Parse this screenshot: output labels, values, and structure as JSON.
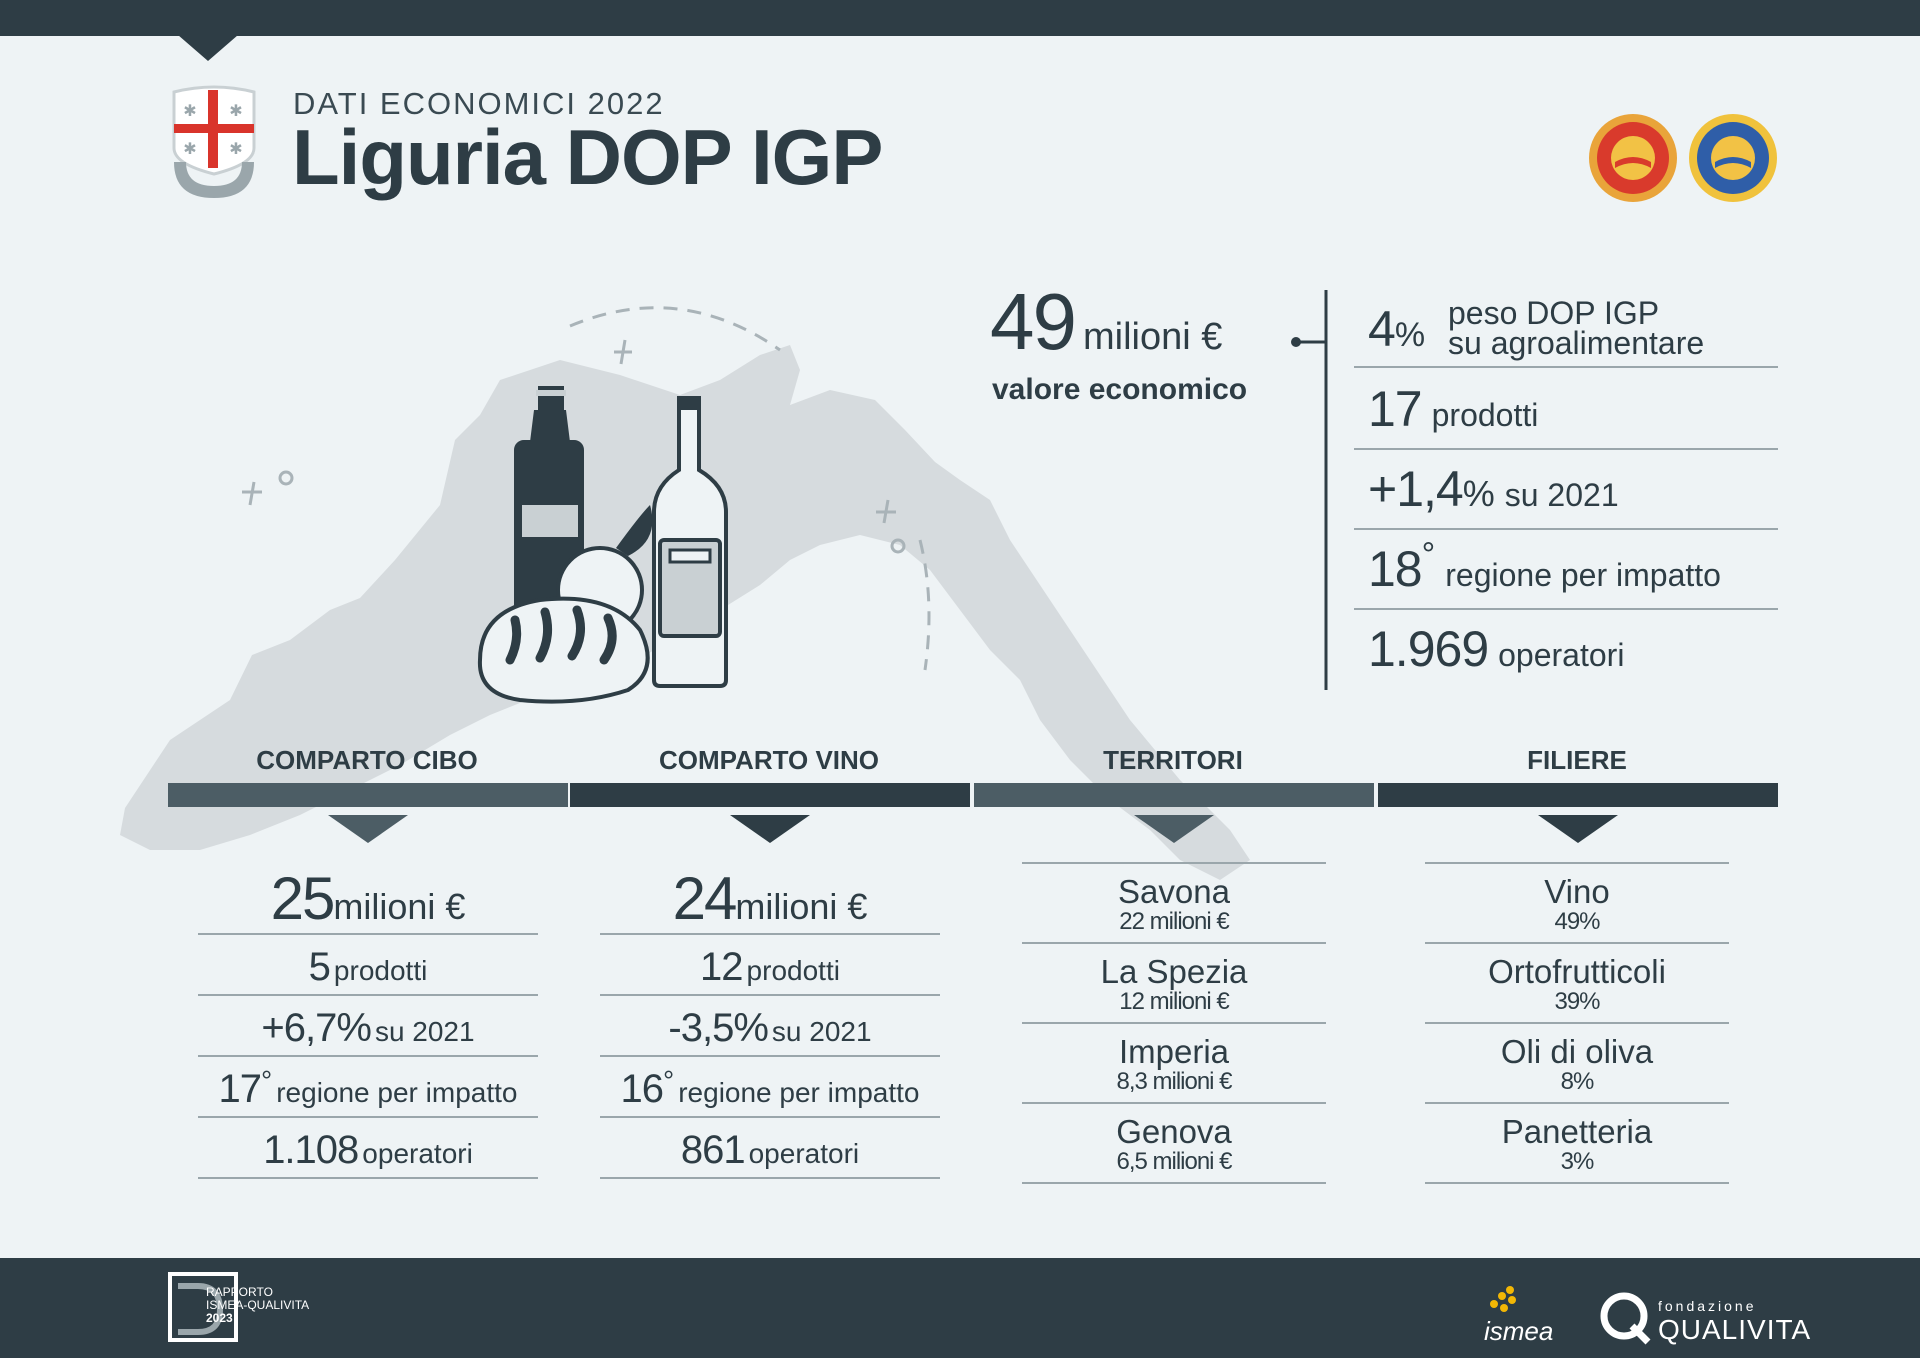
{
  "header": {
    "kicker": "DATI ECONOMICI 2022",
    "title": "Liguria DOP IGP"
  },
  "summary": {
    "value": "49",
    "unit": "milioni €",
    "label": "valore economico",
    "kpis": [
      {
        "num": "4",
        "pct": "%",
        "line1": "peso DOP IGP",
        "line2": "su agroalimentare"
      },
      {
        "num": "17",
        "text": "prodotti"
      },
      {
        "num": "+1,4",
        "pct": "%",
        "text": "su 2021"
      },
      {
        "num": "18",
        "sup": "°",
        "text": "regione per impatto"
      },
      {
        "num": "1.969",
        "text": "operatori"
      }
    ]
  },
  "sections": {
    "cibo": {
      "heading": "COMPARTO CIBO",
      "value": "25",
      "unit": "milioni €",
      "products_num": "5",
      "products_txt": "prodotti",
      "trend_num": "+6,7%",
      "trend_txt": "su 2021",
      "rank_num": "17",
      "rank_sup": "°",
      "rank_txt": "regione per impatto",
      "ops_num": "1.108",
      "ops_txt": "operatori"
    },
    "vino": {
      "heading": "COMPARTO VINO",
      "value": "24",
      "unit": "milioni €",
      "products_num": "12",
      "products_txt": "prodotti",
      "trend_num": "-3,5%",
      "trend_txt": "su 2021",
      "rank_num": "16",
      "rank_sup": "°",
      "rank_txt": "regione per impatto",
      "ops_num": "861",
      "ops_txt": "operatori"
    },
    "territori": {
      "heading": "TERRITORI",
      "items": [
        {
          "name": "Savona",
          "value": "22 milioni €"
        },
        {
          "name": "La Spezia",
          "value": "12 milioni €"
        },
        {
          "name": "Imperia",
          "value": "8,3 milioni €"
        },
        {
          "name": "Genova",
          "value": "6,5 milioni €"
        }
      ]
    },
    "filiere": {
      "heading": "FILIERE",
      "items": [
        {
          "name": "Vino",
          "value": "49%"
        },
        {
          "name": "Ortofrutticoli",
          "value": "39%"
        },
        {
          "name": "Oli di oliva",
          "value": "8%"
        },
        {
          "name": "Panetteria",
          "value": "3%"
        }
      ]
    }
  },
  "footer": {
    "report_line1": "RAPPORTO",
    "report_line2": "ISMEA-QUALIVITA",
    "report_year": "2023",
    "ismea": "ismea",
    "fondazione": "fondazione",
    "qualivita": "QUALIVITA"
  },
  "colors": {
    "dark": "#2e3d45",
    "mid": "#4c5d65",
    "background": "#eef3f5",
    "map": "#d4d9dc"
  }
}
